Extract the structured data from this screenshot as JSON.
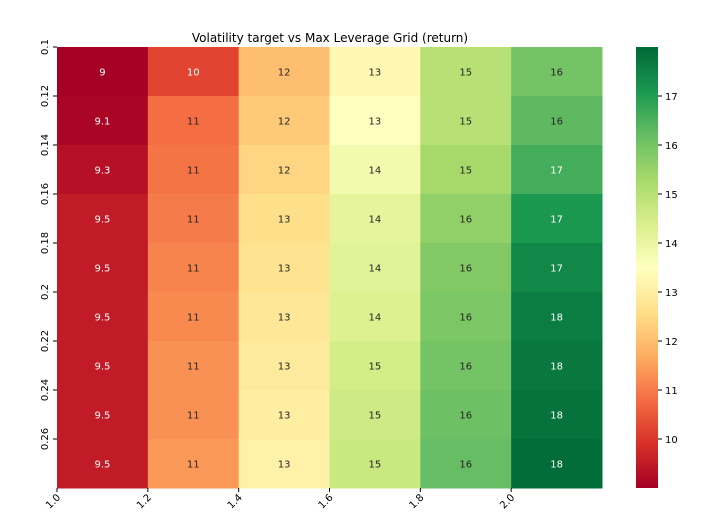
{
  "chart_data": {
    "type": "heatmap",
    "title": "Volatility target vs Max Leverage Grid (return)",
    "xlabel": "",
    "ylabel": "",
    "x_tick_labels": [
      "1.0",
      "1.2",
      "1.4",
      "1.6",
      "1.8",
      "2.0"
    ],
    "y_tick_labels": [
      "0.1",
      "0.12",
      "0.14",
      "0.16",
      "0.18",
      "0.2",
      "0.22",
      "0.24",
      "0.26"
    ],
    "values": [
      [
        9.0,
        10.2,
        12.0,
        13.3,
        15.0,
        16.0
      ],
      [
        9.1,
        10.8,
        12.2,
        13.5,
        15.0,
        16.3
      ],
      [
        9.3,
        10.9,
        12.4,
        13.8,
        15.3,
        16.6
      ],
      [
        9.5,
        11.0,
        12.6,
        14.1,
        15.6,
        17.1
      ],
      [
        9.5,
        11.1,
        12.7,
        14.2,
        15.8,
        17.4
      ],
      [
        9.5,
        11.2,
        12.8,
        14.3,
        15.9,
        17.6
      ],
      [
        9.5,
        11.3,
        12.9,
        14.5,
        16.0,
        17.7
      ],
      [
        9.5,
        11.3,
        13.0,
        14.6,
        16.1,
        17.8
      ],
      [
        9.5,
        11.4,
        13.1,
        14.7,
        16.2,
        17.9
      ]
    ],
    "cell_labels": [
      [
        "9",
        "10",
        "12",
        "13",
        "15",
        "16"
      ],
      [
        "9.1",
        "11",
        "12",
        "13",
        "15",
        "16"
      ],
      [
        "9.3",
        "11",
        "12",
        "14",
        "15",
        "17"
      ],
      [
        "9.5",
        "11",
        "13",
        "14",
        "16",
        "17"
      ],
      [
        "9.5",
        "11",
        "13",
        "14",
        "16",
        "17"
      ],
      [
        "9.5",
        "11",
        "13",
        "14",
        "16",
        "18"
      ],
      [
        "9.5",
        "11",
        "13",
        "15",
        "16",
        "18"
      ],
      [
        "9.5",
        "11",
        "13",
        "15",
        "16",
        "18"
      ],
      [
        "9.5",
        "11",
        "13",
        "15",
        "16",
        "18"
      ]
    ],
    "colorbar": {
      "colormap": "RdYlGn",
      "vmin": 9.0,
      "vmax": 18.0,
      "tick_labels": [
        "10",
        "11",
        "12",
        "13",
        "14",
        "15",
        "16",
        "17"
      ]
    }
  }
}
